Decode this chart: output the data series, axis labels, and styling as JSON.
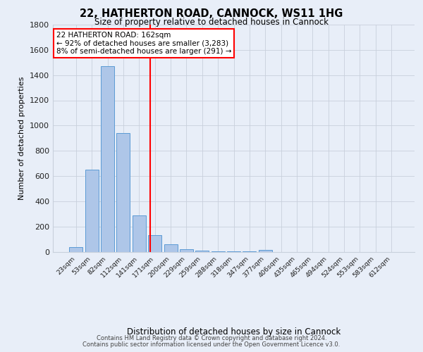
{
  "title_line1": "22, HATHERTON ROAD, CANNOCK, WS11 1HG",
  "title_line2": "Size of property relative to detached houses in Cannock",
  "xlabel": "Distribution of detached houses by size in Cannock",
  "ylabel": "Number of detached properties",
  "bar_labels": [
    "23sqm",
    "53sqm",
    "82sqm",
    "112sqm",
    "141sqm",
    "171sqm",
    "200sqm",
    "229sqm",
    "259sqm",
    "288sqm",
    "318sqm",
    "347sqm",
    "377sqm",
    "406sqm",
    "435sqm",
    "465sqm",
    "494sqm",
    "524sqm",
    "553sqm",
    "583sqm",
    "612sqm"
  ],
  "bar_values": [
    38,
    648,
    1468,
    940,
    285,
    130,
    60,
    20,
    8,
    5,
    3,
    2,
    14,
    0,
    0,
    0,
    0,
    0,
    0,
    0,
    0
  ],
  "bar_color": "#aec6e8",
  "bar_edgecolor": "#5b9bd5",
  "annotation_text": "22 HATHERTON ROAD: 162sqm\n← 92% of detached houses are smaller (3,283)\n8% of semi-detached houses are larger (291) →",
  "annotation_box_color": "white",
  "annotation_box_edgecolor": "red",
  "vline_color": "red",
  "vline_pos": 4.68,
  "ylim": [
    0,
    1800
  ],
  "yticks": [
    0,
    200,
    400,
    600,
    800,
    1000,
    1200,
    1400,
    1600,
    1800
  ],
  "footer_line1": "Contains HM Land Registry data © Crown copyright and database right 2024.",
  "footer_line2": "Contains public sector information licensed under the Open Government Licence v3.0.",
  "bg_color": "#e8eef8",
  "plot_bg_color": "#e8eef8",
  "grid_color": "#c8d0dc"
}
